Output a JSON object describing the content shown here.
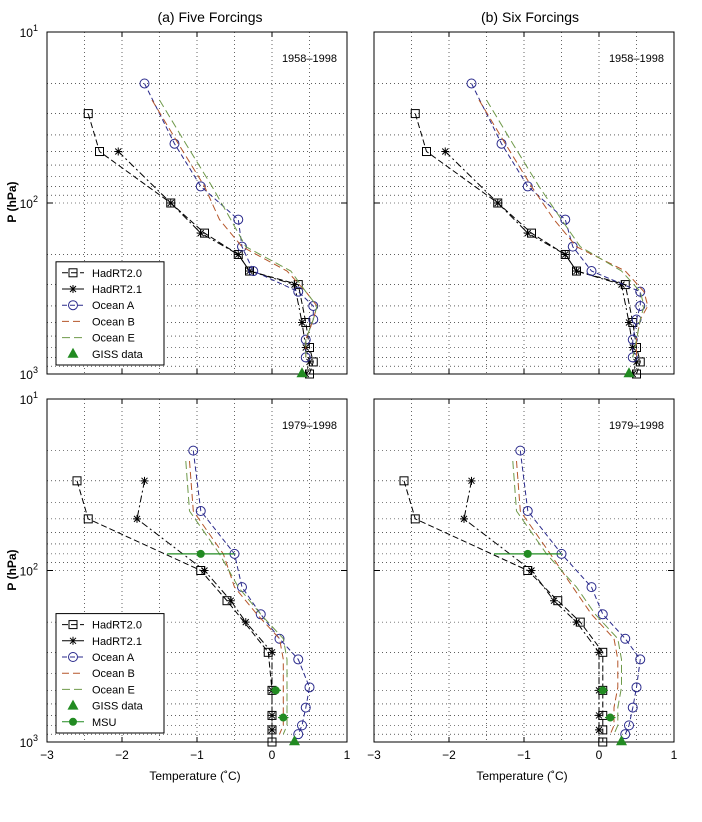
{
  "colors": {
    "hadrt": "#000000",
    "ocean_a": "#2a2a8c",
    "ocean_b": "#b5562a",
    "ocean_e": "#6f9a4a",
    "giss": "#228b22",
    "msu": "#228b22"
  },
  "axes": {
    "ylabel": "P (hPa)",
    "xlabel": "Temperature (˚C)",
    "xlim": [
      -3,
      1
    ],
    "ylim": [
      10,
      1000
    ],
    "yscale": "log",
    "x_ticks": [
      "−3",
      "−2",
      "−1",
      "0",
      "1"
    ],
    "y_ticks": [
      {
        "base": "10",
        "exp": "1",
        "value": 10
      },
      {
        "base": "10",
        "exp": "2",
        "value": 100
      },
      {
        "base": "10",
        "exp": "3",
        "value": 1000
      }
    ],
    "grid": true
  },
  "chart_data": [
    {
      "type": "line",
      "title": "(a) Five Forcings",
      "period": "1958–1998",
      "legend_position": "bottom-left",
      "series": [
        {
          "name": "HadRT2.0",
          "style": "hadrt20",
          "x": [
            -2.45,
            -2.3,
            -1.35,
            -0.9,
            -0.45,
            -0.3,
            0.35,
            0.45,
            0.5,
            0.55,
            0.5
          ],
          "y": [
            30,
            50,
            100,
            150,
            200,
            250,
            300,
            500,
            700,
            850,
            1000
          ]
        },
        {
          "name": "HadRT2.1",
          "style": "hadrt21",
          "x": [
            -2.05,
            -1.35,
            -0.95,
            -0.45,
            -0.3,
            0.3,
            0.4,
            0.45,
            0.5,
            0.45
          ],
          "y": [
            50,
            100,
            150,
            200,
            250,
            300,
            500,
            700,
            850,
            1000
          ]
        },
        {
          "name": "Ocean A",
          "style": "oceana",
          "x": [
            -1.7,
            -1.3,
            -0.95,
            -0.45,
            -0.4,
            -0.25,
            0.35,
            0.55,
            0.55,
            0.45,
            0.45
          ],
          "y": [
            20,
            45,
            80,
            125,
            180,
            250,
            330,
            400,
            480,
            630,
            800
          ]
        },
        {
          "name": "Ocean B",
          "style": "oceanb",
          "x": [
            -1.6,
            -1.25,
            -0.9,
            -0.7,
            -0.4,
            0.2,
            0.45,
            0.6,
            0.55,
            0.45,
            0.45
          ],
          "y": [
            25,
            45,
            80,
            125,
            180,
            250,
            330,
            400,
            480,
            630,
            800
          ]
        },
        {
          "name": "Ocean E",
          "style": "oceane",
          "x": [
            -1.5,
            -1.15,
            -0.8,
            -0.55,
            -0.35,
            0.25,
            0.45,
            0.6,
            0.55,
            0.45,
            0.45
          ],
          "y": [
            25,
            45,
            80,
            125,
            180,
            250,
            330,
            400,
            480,
            630,
            800
          ]
        },
        {
          "name": "GISS data",
          "style": "giss",
          "x": [
            0.4
          ],
          "y": [
            990
          ]
        }
      ]
    },
    {
      "type": "line",
      "title": "(b) Six Forcings",
      "period": "1958–1998",
      "legend_position": "",
      "series": [
        {
          "name": "HadRT2.0",
          "style": "hadrt20",
          "x": [
            -2.45,
            -2.3,
            -1.35,
            -0.9,
            -0.45,
            -0.3,
            0.35,
            0.45,
            0.5,
            0.55,
            0.5
          ],
          "y": [
            30,
            50,
            100,
            150,
            200,
            250,
            300,
            500,
            700,
            850,
            1000
          ]
        },
        {
          "name": "HadRT2.1",
          "style": "hadrt21",
          "x": [
            -2.05,
            -1.35,
            -0.95,
            -0.45,
            -0.3,
            0.3,
            0.4,
            0.45,
            0.5,
            0.45
          ],
          "y": [
            50,
            100,
            150,
            200,
            250,
            300,
            500,
            700,
            850,
            1000
          ]
        },
        {
          "name": "Ocean A",
          "style": "oceana",
          "x": [
            -1.7,
            -1.3,
            -0.95,
            -0.45,
            -0.35,
            -0.1,
            0.55,
            0.55,
            0.5,
            0.45,
            0.45
          ],
          "y": [
            20,
            45,
            80,
            125,
            180,
            250,
            330,
            400,
            480,
            630,
            800
          ]
        },
        {
          "name": "Ocean B",
          "style": "oceanb",
          "x": [
            -1.6,
            -1.25,
            -0.9,
            -0.6,
            -0.3,
            0.35,
            0.6,
            0.65,
            0.55,
            0.5,
            0.5
          ],
          "y": [
            25,
            45,
            80,
            125,
            180,
            250,
            330,
            400,
            480,
            630,
            800
          ]
        },
        {
          "name": "Ocean E",
          "style": "oceane",
          "x": [
            -1.5,
            -1.15,
            -0.8,
            -0.5,
            -0.25,
            0.3,
            0.55,
            0.6,
            0.55,
            0.5,
            0.45
          ],
          "y": [
            25,
            45,
            80,
            125,
            180,
            250,
            330,
            400,
            480,
            630,
            800
          ]
        },
        {
          "name": "GISS data",
          "style": "giss",
          "x": [
            0.4
          ],
          "y": [
            990
          ]
        }
      ]
    },
    {
      "type": "line",
      "title": "",
      "period": "1979–1998",
      "legend_position": "bottom-left",
      "series": [
        {
          "name": "HadRT2.0",
          "style": "hadrt20",
          "x": [
            -2.6,
            -2.45,
            -0.95,
            -0.6,
            -0.05,
            0.0,
            0.0,
            0.0,
            0.0,
            0.0
          ],
          "y": [
            30,
            50,
            100,
            150,
            300,
            500,
            700,
            850,
            1000,
            1000
          ]
        },
        {
          "name": "HadRT2.1",
          "style": "hadrt21",
          "x": [
            -1.7,
            -1.8,
            -0.9,
            -0.55,
            -0.35,
            0.0,
            0.0,
            0.0,
            0.0
          ],
          "y": [
            30,
            50,
            100,
            150,
            200,
            300,
            500,
            700,
            850
          ]
        },
        {
          "name": "Ocean A",
          "style": "oceana",
          "x": [
            -1.05,
            -0.95,
            -0.5,
            -0.4,
            -0.15,
            0.1,
            0.35,
            0.5,
            0.45,
            0.4,
            0.35
          ],
          "y": [
            20,
            45,
            80,
            125,
            180,
            250,
            330,
            480,
            630,
            800,
            900
          ]
        },
        {
          "name": "Ocean B",
          "style": "oceanb",
          "x": [
            -1.1,
            -1.05,
            -0.65,
            -0.5,
            -0.2,
            0.1,
            0.15,
            0.15,
            0.15,
            0.15,
            0.1
          ],
          "y": [
            23,
            45,
            80,
            125,
            180,
            250,
            330,
            480,
            630,
            800,
            900
          ]
        },
        {
          "name": "Ocean E",
          "style": "oceane",
          "x": [
            -1.15,
            -1.1,
            -0.7,
            -0.45,
            -0.15,
            0.15,
            0.2,
            0.2,
            0.2,
            0.2,
            0.15
          ],
          "y": [
            23,
            45,
            80,
            125,
            180,
            250,
            330,
            480,
            630,
            800,
            900
          ]
        },
        {
          "name": "GISS data",
          "style": "giss",
          "x": [
            0.3
          ],
          "y": [
            990
          ]
        },
        {
          "name": "MSU",
          "style": "msu",
          "x": [
            -0.95,
            0.05,
            0.15
          ],
          "y": [
            80,
            500,
            720
          ],
          "xerr": [
            0.45,
            0.07,
            0.07
          ]
        }
      ]
    },
    {
      "type": "line",
      "title": "",
      "period": "1979–1998",
      "legend_position": "",
      "series": [
        {
          "name": "HadRT2.0",
          "style": "hadrt20",
          "x": [
            -2.6,
            -2.45,
            -0.95,
            -0.55,
            -0.25,
            0.05,
            0.05,
            0.05,
            0.05,
            0.05
          ],
          "y": [
            30,
            50,
            100,
            150,
            200,
            300,
            500,
            700,
            850,
            1000
          ]
        },
        {
          "name": "HadRT2.1",
          "style": "hadrt21",
          "x": [
            -1.7,
            -1.8,
            -0.9,
            -0.6,
            -0.3,
            0.0,
            0.0,
            0.0,
            0.0
          ],
          "y": [
            30,
            50,
            100,
            150,
            200,
            300,
            500,
            700,
            850
          ]
        },
        {
          "name": "Ocean A",
          "style": "oceana",
          "x": [
            -1.05,
            -0.95,
            -0.5,
            -0.1,
            0.05,
            0.35,
            0.55,
            0.5,
            0.45,
            0.4,
            0.35
          ],
          "y": [
            20,
            45,
            80,
            125,
            180,
            250,
            330,
            480,
            630,
            800,
            900
          ]
        },
        {
          "name": "Ocean B",
          "style": "oceanb",
          "x": [
            -1.1,
            -1.05,
            -0.65,
            -0.35,
            -0.1,
            0.2,
            0.25,
            0.25,
            0.2,
            0.2,
            0.15
          ],
          "y": [
            23,
            45,
            80,
            125,
            180,
            250,
            330,
            480,
            630,
            800,
            900
          ]
        },
        {
          "name": "Ocean E",
          "style": "oceane",
          "x": [
            -1.15,
            -1.1,
            -0.7,
            -0.3,
            -0.05,
            0.25,
            0.3,
            0.3,
            0.25,
            0.25,
            0.2
          ],
          "y": [
            23,
            45,
            80,
            125,
            180,
            250,
            330,
            480,
            630,
            800,
            900
          ]
        },
        {
          "name": "GISS data",
          "style": "giss",
          "x": [
            0.3
          ],
          "y": [
            990
          ]
        },
        {
          "name": "MSU",
          "style": "msu",
          "x": [
            -0.95,
            0.05,
            0.15
          ],
          "y": [
            80,
            500,
            720
          ],
          "xerr": [
            0.45,
            0.07,
            0.07
          ]
        }
      ]
    }
  ]
}
